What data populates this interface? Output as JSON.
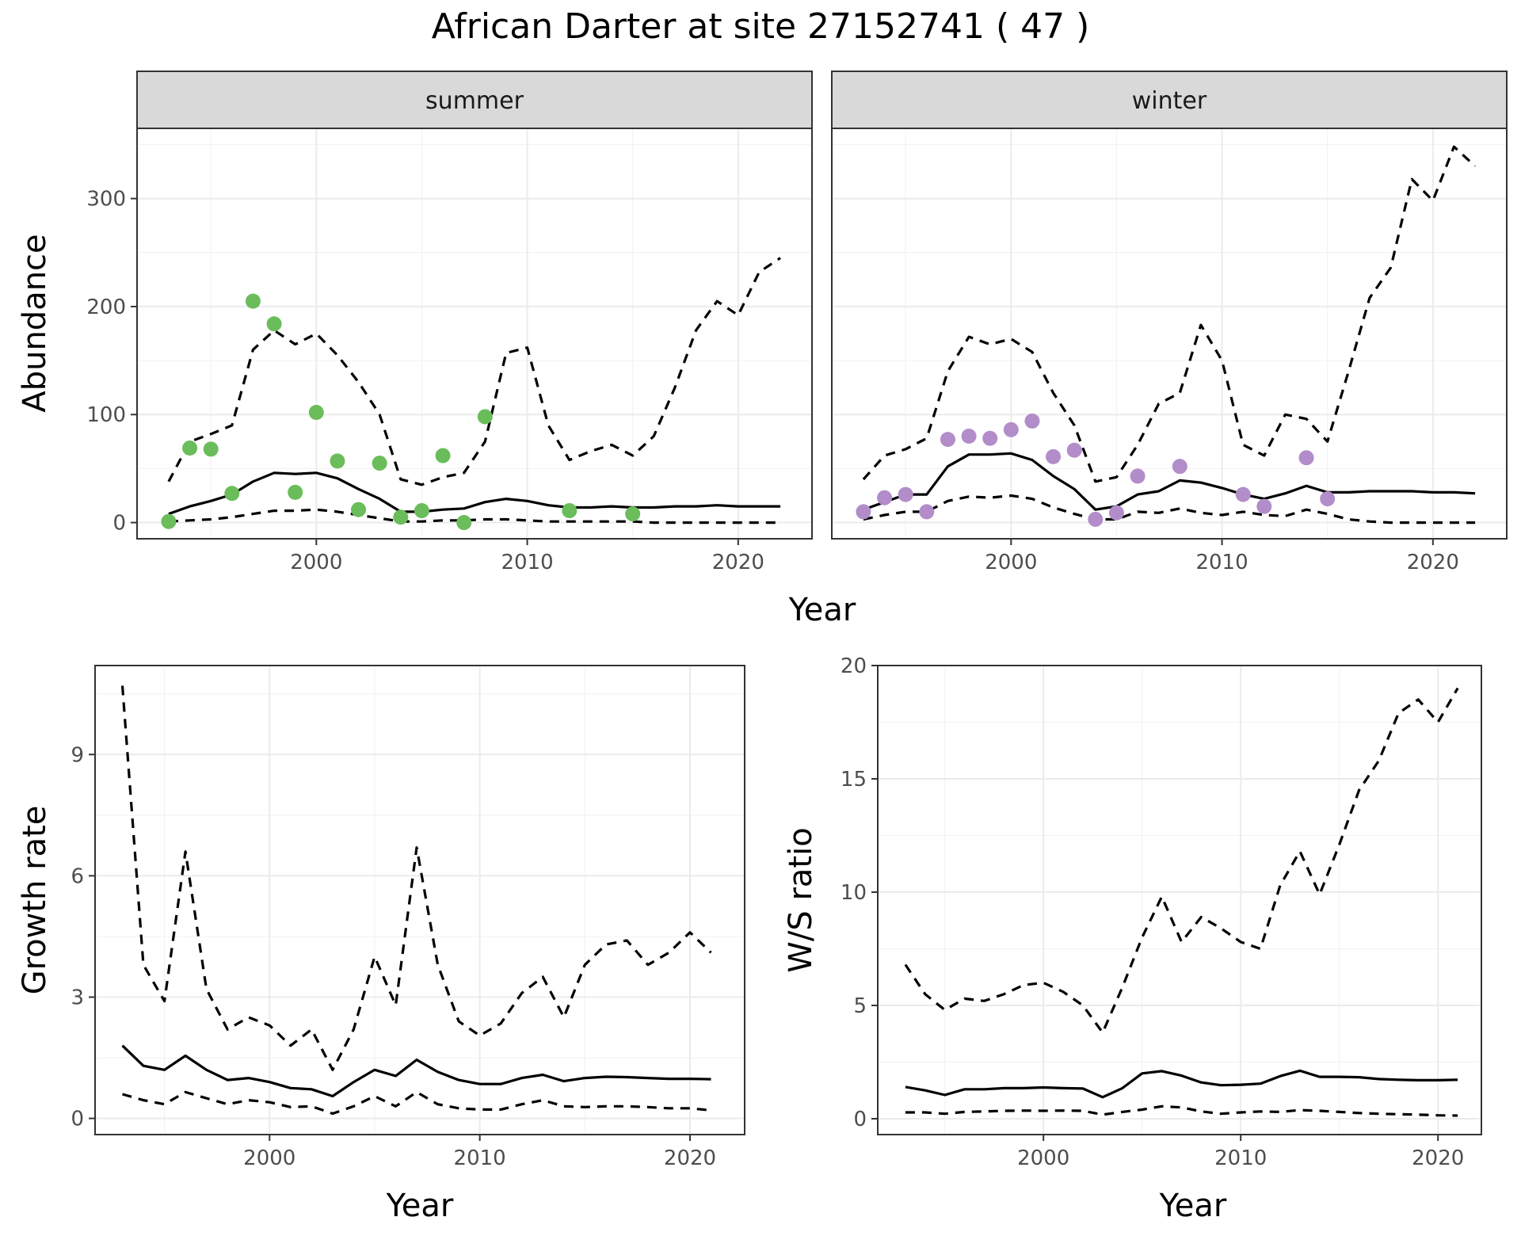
{
  "title": "African Darter at site 27152741 ( 47 )",
  "chart_data": [
    {
      "id": "summer",
      "type": "line",
      "panel_label": "summer",
      "ylabel": "Abundance",
      "xlabel_shared": "Year",
      "xlim": [
        1991.5,
        2023.5
      ],
      "ylim": [
        -15,
        365
      ],
      "x_ticks": [
        2000,
        2010,
        2020
      ],
      "y_ticks": [
        0,
        100,
        200,
        300
      ],
      "point_color": "#6ABD5A",
      "years": [
        1993,
        1994,
        1995,
        1996,
        1997,
        1998,
        1999,
        2000,
        2001,
        2002,
        2003,
        2004,
        2005,
        2006,
        2007,
        2008,
        2009,
        2010,
        2011,
        2012,
        2013,
        2014,
        2015,
        2016,
        2017,
        2018,
        2019,
        2020,
        2021,
        2022
      ],
      "median": [
        8,
        15,
        20,
        26,
        38,
        46,
        45,
        46,
        41,
        31,
        22,
        10,
        10,
        12,
        13,
        19,
        22,
        20,
        16,
        14,
        14,
        15,
        14,
        14,
        15,
        15,
        16,
        15,
        15,
        15
      ],
      "upper": [
        38,
        75,
        82,
        90,
        160,
        178,
        165,
        175,
        155,
        130,
        100,
        40,
        35,
        42,
        46,
        75,
        157,
        162,
        90,
        58,
        66,
        72,
        62,
        80,
        125,
        178,
        205,
        192,
        232,
        245
      ],
      "lower": [
        1,
        2,
        3,
        5,
        8,
        11,
        11,
        12,
        10,
        7,
        4,
        1,
        1,
        2,
        2,
        3,
        3,
        2,
        1,
        1,
        1,
        1,
        1,
        0,
        0,
        0,
        0,
        0,
        0,
        0
      ],
      "observations": {
        "x": [
          1993,
          1994,
          1995,
          1996,
          1997,
          1998,
          1999,
          2000,
          2001,
          2002,
          2003,
          2004,
          2005,
          2006,
          2007,
          2008,
          2012,
          2015
        ],
        "y": [
          1,
          69,
          68,
          27,
          205,
          184,
          28,
          102,
          57,
          12,
          55,
          5,
          11,
          62,
          0,
          98,
          11,
          8
        ]
      }
    },
    {
      "id": "winter",
      "type": "line",
      "panel_label": "winter",
      "xlabel_shared": "Year",
      "xlim": [
        1991.5,
        2023.5
      ],
      "ylim": [
        -15,
        365
      ],
      "x_ticks": [
        2000,
        2010,
        2020
      ],
      "y_ticks": [
        0,
        100,
        200,
        300
      ],
      "point_color": "#B28DC9",
      "years": [
        1993,
        1994,
        1995,
        1996,
        1997,
        1998,
        1999,
        2000,
        2001,
        2002,
        2003,
        2004,
        2005,
        2006,
        2007,
        2008,
        2009,
        2010,
        2011,
        2012,
        2013,
        2014,
        2015,
        2016,
        2017,
        2018,
        2019,
        2020,
        2021,
        2022
      ],
      "median": [
        12,
        19,
        26,
        26,
        52,
        63,
        63,
        64,
        58,
        43,
        31,
        12,
        15,
        26,
        29,
        39,
        37,
        32,
        26,
        22,
        27,
        34,
        28,
        28,
        29,
        29,
        29,
        28,
        28,
        27
      ],
      "upper": [
        40,
        62,
        68,
        78,
        140,
        172,
        165,
        170,
        158,
        120,
        90,
        38,
        42,
        72,
        110,
        120,
        183,
        150,
        72,
        62,
        100,
        96,
        75,
        140,
        208,
        236,
        318,
        298,
        348,
        330
      ],
      "lower": [
        3,
        7,
        10,
        10,
        20,
        24,
        23,
        25,
        22,
        14,
        8,
        3,
        3,
        10,
        9,
        13,
        9,
        7,
        10,
        7,
        6,
        12,
        8,
        3,
        1,
        0,
        0,
        0,
        0,
        0
      ],
      "observations": {
        "x": [
          1993,
          1994,
          1995,
          1996,
          1997,
          1998,
          1999,
          2000,
          2001,
          2002,
          2003,
          2004,
          2005,
          2006,
          2008,
          2011,
          2012,
          2014,
          2015
        ],
        "y": [
          10,
          23,
          26,
          10,
          77,
          80,
          78,
          86,
          94,
          61,
          67,
          3,
          9,
          43,
          52,
          26,
          15,
          60,
          22
        ]
      }
    },
    {
      "id": "growth",
      "type": "line",
      "ylabel": "Growth rate",
      "xlabel": "Year",
      "xlim": [
        1991.7,
        2022.6
      ],
      "ylim": [
        -0.4,
        11.2
      ],
      "x_ticks": [
        2000,
        2010,
        2020
      ],
      "y_ticks": [
        0,
        3,
        6,
        9
      ],
      "years": [
        1993,
        1994,
        1995,
        1996,
        1997,
        1998,
        1999,
        2000,
        2001,
        2002,
        2003,
        2004,
        2005,
        2006,
        2007,
        2008,
        2009,
        2010,
        2011,
        2012,
        2013,
        2014,
        2015,
        2016,
        2017,
        2018,
        2019,
        2020,
        2021
      ],
      "median": [
        1.8,
        1.3,
        1.2,
        1.55,
        1.2,
        0.95,
        1.0,
        0.9,
        0.75,
        0.72,
        0.55,
        0.9,
        1.2,
        1.05,
        1.45,
        1.15,
        0.95,
        0.85,
        0.85,
        1.0,
        1.08,
        0.92,
        1.0,
        1.03,
        1.02,
        1.0,
        0.98,
        0.98,
        0.97
      ],
      "upper": [
        10.7,
        3.8,
        2.9,
        6.6,
        3.2,
        2.2,
        2.5,
        2.3,
        1.8,
        2.2,
        1.2,
        2.2,
        4.0,
        2.8,
        6.7,
        3.8,
        2.4,
        2.05,
        2.35,
        3.1,
        3.5,
        2.5,
        3.8,
        4.3,
        4.4,
        3.8,
        4.1,
        4.6,
        4.1
      ],
      "lower": [
        0.6,
        0.45,
        0.35,
        0.65,
        0.5,
        0.35,
        0.45,
        0.4,
        0.28,
        0.3,
        0.12,
        0.3,
        0.55,
        0.3,
        0.65,
        0.35,
        0.25,
        0.22,
        0.22,
        0.35,
        0.45,
        0.3,
        0.28,
        0.3,
        0.3,
        0.28,
        0.25,
        0.25,
        0.2
      ]
    },
    {
      "id": "ws_ratio",
      "type": "line",
      "ylabel": "W/S ratio",
      "xlabel": "Year",
      "xlim": [
        1991.6,
        2022.2
      ],
      "ylim": [
        -0.7,
        20.0
      ],
      "x_ticks": [
        2000,
        2010,
        2020
      ],
      "y_ticks": [
        0,
        5,
        10,
        15,
        20
      ],
      "years": [
        1993,
        1994,
        1995,
        1996,
        1997,
        1998,
        1999,
        2000,
        2001,
        2002,
        2003,
        2004,
        2005,
        2006,
        2007,
        2008,
        2009,
        2010,
        2011,
        2012,
        2013,
        2014,
        2015,
        2016,
        2017,
        2018,
        2019,
        2020,
        2021
      ],
      "median": [
        1.4,
        1.25,
        1.05,
        1.3,
        1.3,
        1.35,
        1.35,
        1.38,
        1.35,
        1.33,
        0.95,
        1.35,
        2.0,
        2.1,
        1.9,
        1.6,
        1.48,
        1.5,
        1.55,
        1.88,
        2.12,
        1.85,
        1.85,
        1.83,
        1.75,
        1.72,
        1.7,
        1.7,
        1.72
      ],
      "upper": [
        6.8,
        5.5,
        4.8,
        5.3,
        5.2,
        5.5,
        5.9,
        6.0,
        5.6,
        5.0,
        3.8,
        5.8,
        8.0,
        9.8,
        7.8,
        8.9,
        8.4,
        7.8,
        7.5,
        10.3,
        11.8,
        9.9,
        12.1,
        14.5,
        15.8,
        17.9,
        18.5,
        17.5,
        19.0
      ],
      "lower": [
        0.28,
        0.28,
        0.22,
        0.3,
        0.32,
        0.35,
        0.36,
        0.35,
        0.36,
        0.35,
        0.18,
        0.3,
        0.4,
        0.55,
        0.5,
        0.32,
        0.22,
        0.28,
        0.32,
        0.3,
        0.38,
        0.35,
        0.3,
        0.25,
        0.22,
        0.2,
        0.18,
        0.15,
        0.14
      ]
    }
  ]
}
